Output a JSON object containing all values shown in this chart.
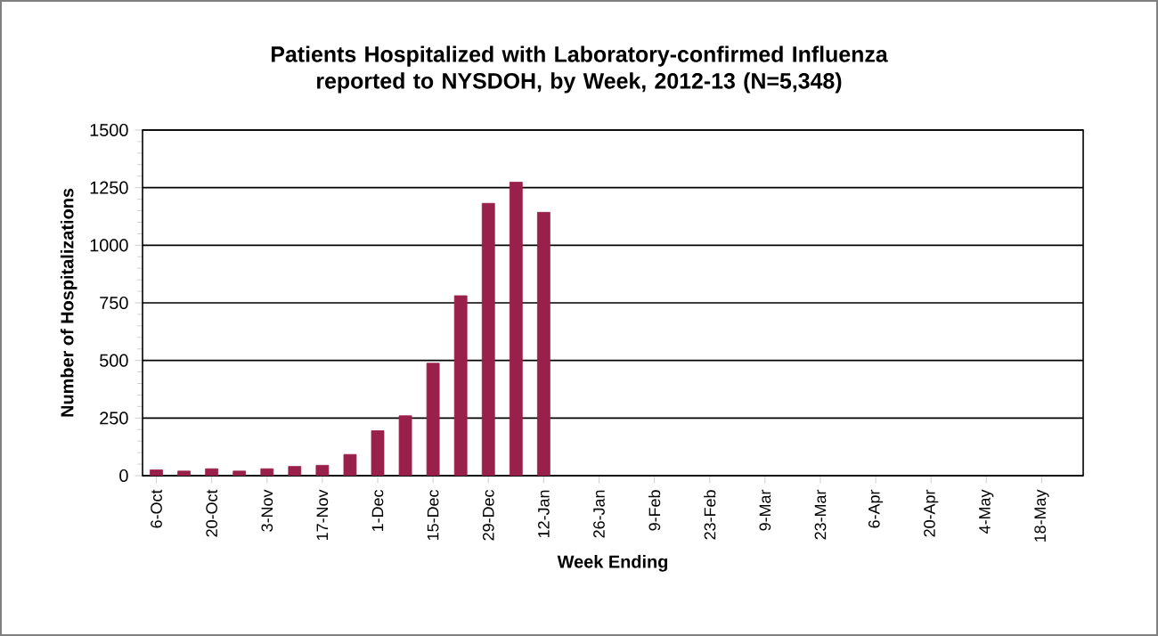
{
  "chart_data": {
    "type": "bar",
    "title": "Patients Hospitalized with Laboratory-confirmed Influenza reported to NYSDOH, by Week, 2012-13 (N=5,348)",
    "xlabel": "Week Ending",
    "ylabel": "Number of Hospitalizations",
    "categories": [
      "6-Oct",
      null,
      "20-Oct",
      null,
      "3-Nov",
      null,
      "17-Nov",
      null,
      "1-Dec",
      null,
      "15-Dec",
      null,
      "29-Dec",
      null,
      "12-Jan",
      null,
      "26-Jan",
      null,
      "9-Feb",
      null,
      "23-Feb",
      null,
      "9-Mar",
      null,
      "23-Mar",
      null,
      "6-Apr",
      null,
      "20-Apr",
      null,
      "4-May",
      null,
      "18-May",
      null
    ],
    "values": [
      25,
      20,
      30,
      20,
      30,
      40,
      45,
      92,
      195,
      260,
      488,
      781,
      1182,
      1274,
      1143,
      null,
      null,
      null,
      null,
      null,
      null,
      null,
      null,
      null,
      null,
      null,
      null,
      null,
      null,
      null,
      null,
      null,
      null,
      null
    ],
    "color": "#99204a",
    "ylim": [
      0,
      1500
    ],
    "yticks": [
      0,
      250,
      500,
      750,
      1000,
      1250,
      1500
    ],
    "grid": "y"
  }
}
